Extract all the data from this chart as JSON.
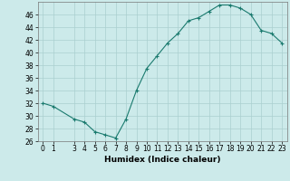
{
  "x": [
    0,
    1,
    3,
    4,
    5,
    6,
    7,
    8,
    9,
    10,
    11,
    12,
    13,
    14,
    15,
    16,
    17,
    18,
    19,
    20,
    21,
    22,
    23
  ],
  "y": [
    32,
    31.5,
    29.5,
    29,
    27.5,
    27,
    26.5,
    29.5,
    34,
    37.5,
    39.5,
    41.5,
    43,
    45,
    45.5,
    46.5,
    47.5,
    47.5,
    47,
    46,
    43.5,
    43,
    41.5
  ],
  "xlabel": "Humidex (Indice chaleur)",
  "ylim": [
    26,
    48
  ],
  "xlim": [
    -0.5,
    23.5
  ],
  "yticks": [
    26,
    28,
    30,
    32,
    34,
    36,
    38,
    40,
    42,
    44,
    46
  ],
  "xticks": [
    0,
    1,
    3,
    4,
    5,
    6,
    7,
    8,
    9,
    10,
    11,
    12,
    13,
    14,
    15,
    16,
    17,
    18,
    19,
    20,
    21,
    22,
    23
  ],
  "line_color": "#1a7a6e",
  "marker": "+",
  "bg_color": "#cceaea",
  "grid_color": "#aacfcf",
  "label_color": "#000000",
  "tick_fontsize": 5.5,
  "xlabel_fontsize": 6.5
}
